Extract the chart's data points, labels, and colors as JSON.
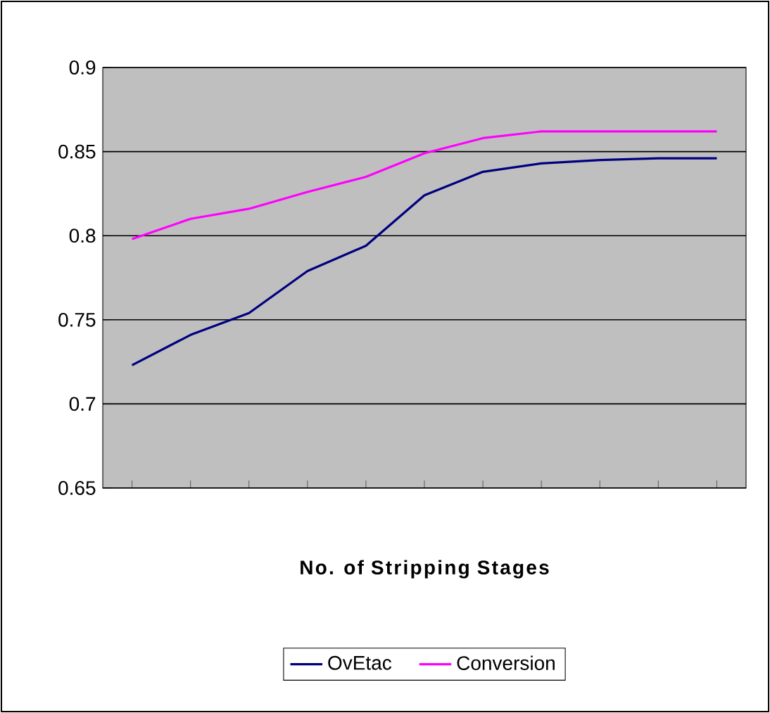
{
  "chart_data": {
    "type": "line",
    "xlabel": "No. of Stripping Stages",
    "categories": [
      null,
      null,
      null,
      null,
      null,
      null,
      null,
      null,
      null,
      null,
      null
    ],
    "series": [
      {
        "name": "OvEtac",
        "color": "#000080",
        "values": [
          0.723,
          0.741,
          0.754,
          0.779,
          0.794,
          0.824,
          0.838,
          0.843,
          0.845,
          0.846,
          0.846
        ]
      },
      {
        "name": "Conversion",
        "color": "#ff00ff",
        "values": [
          0.798,
          0.81,
          0.816,
          0.826,
          0.835,
          0.849,
          0.858,
          0.862,
          0.862,
          0.862,
          0.862
        ]
      }
    ],
    "ylim": [
      0.65,
      0.9
    ],
    "yticks": [
      0.65,
      0.7,
      0.75,
      0.8,
      0.85,
      0.9
    ],
    "grid": "y",
    "legend": "bottom",
    "marker": "none",
    "line_style": "solid"
  }
}
